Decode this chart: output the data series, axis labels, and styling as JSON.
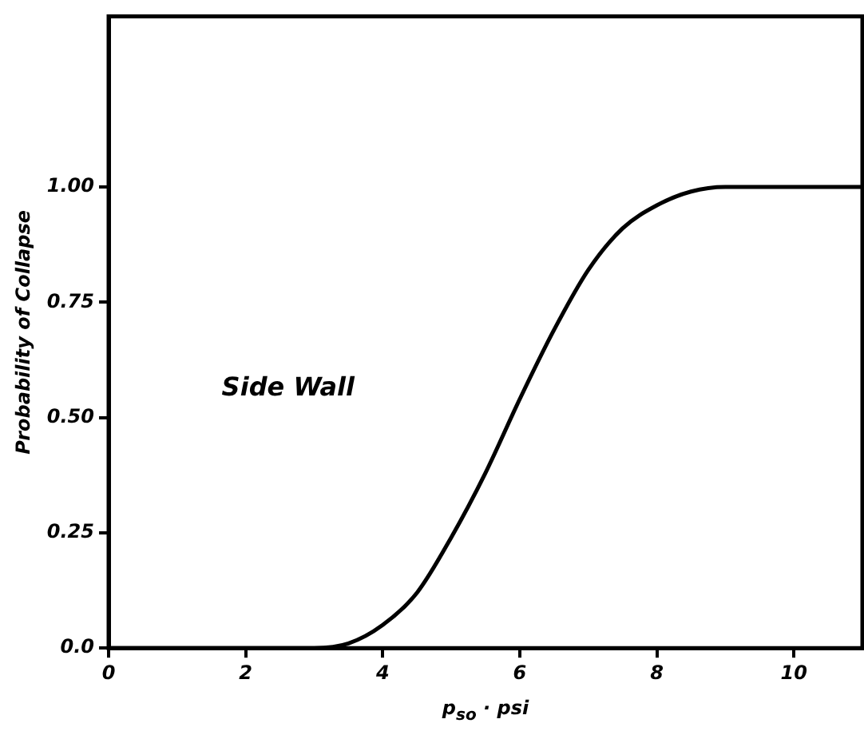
{
  "chart_data": {
    "type": "line",
    "ylabel": "Probability of Collapse",
    "xlabel": "p$_{so}$ · psi",
    "annotations": [
      "Side Wall"
    ],
    "x": [
      0,
      3.0,
      3.5,
      4.0,
      4.5,
      5.0,
      5.5,
      6.0,
      6.5,
      7.0,
      7.5,
      8.0,
      8.5,
      9.0,
      10,
      11
    ],
    "series": [
      {
        "color": "#000000",
        "values": [
          0,
          0,
          0.01,
          0.05,
          0.12,
          0.24,
          0.38,
          0.54,
          0.69,
          0.82,
          0.91,
          0.96,
          0.99,
          1.0,
          1.0,
          1.0
        ]
      }
    ],
    "xlim": [
      0,
      11
    ],
    "xticks": [
      0,
      2,
      4,
      6,
      8,
      10
    ],
    "ylim": [
      0,
      1.37
    ],
    "yticks": [
      {
        "value": 0,
        "label": "0.0"
      },
      {
        "value": 0.25,
        "label": "0.25"
      },
      {
        "value": 0.5,
        "label": "0.50"
      },
      {
        "value": 0.75,
        "label": "0.75"
      },
      {
        "value": 1,
        "label": "1.00"
      }
    ],
    "grid": false,
    "legend": false,
    "marker": "none",
    "line_style": "solid"
  }
}
